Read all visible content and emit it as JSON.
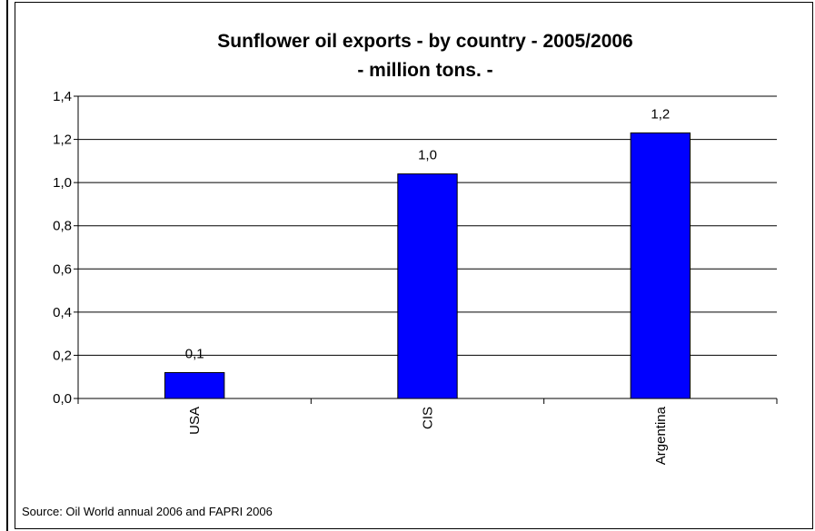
{
  "chart_data": {
    "type": "bar",
    "title": [
      "Sunflower oil exports - by country - 2005/2006",
      "- million tons. -"
    ],
    "xlabel": "",
    "ylabel": "",
    "categories": [
      "USA",
      "CIS",
      "Argentina"
    ],
    "values": [
      0.12,
      1.04,
      1.23
    ],
    "data_labels": [
      "0,1",
      "1,0",
      "1,2"
    ],
    "ylim": [
      0,
      1.4
    ],
    "y_ticks": [
      0,
      0.2,
      0.4,
      0.6,
      0.8,
      1.0,
      1.2,
      1.4
    ],
    "y_tick_labels": [
      "0,0",
      "0,2",
      "0,4",
      "0,6",
      "0,8",
      "1,0",
      "1,2",
      "1,4"
    ],
    "grid": true,
    "legend": "none",
    "bar_color": "#0000FF"
  },
  "source_note": "Source: Oil World annual 2006 and FAPRI 2006"
}
